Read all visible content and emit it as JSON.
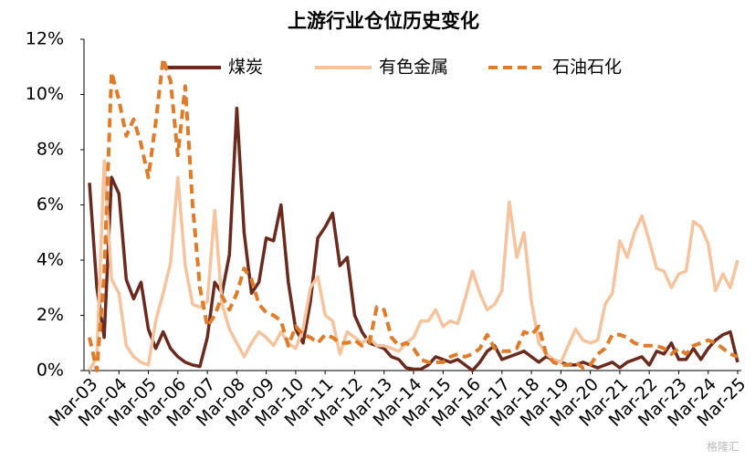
{
  "chart_data": {
    "type": "line",
    "title": "上游行业仓位历史变化",
    "watermark": "格隆汇",
    "categories": [
      "Mar-03",
      null,
      null,
      null,
      "Mar-04",
      null,
      null,
      null,
      "Mar-05",
      null,
      null,
      null,
      "Mar-06",
      null,
      null,
      null,
      "Mar-07",
      null,
      null,
      null,
      "Mar-08",
      null,
      null,
      null,
      "Mar-09",
      null,
      null,
      null,
      "Mar-10",
      null,
      null,
      null,
      "Mar-11",
      null,
      null,
      null,
      "Mar-12",
      null,
      null,
      null,
      "Mar-13",
      null,
      null,
      null,
      "Mar-14",
      null,
      null,
      null,
      "Mar-15",
      null,
      null,
      null,
      "Mar-16",
      null,
      null,
      null,
      "Mar-17",
      null,
      null,
      null,
      "Mar-18",
      null,
      null,
      null,
      "Mar-19",
      null,
      null,
      null,
      "Mar-20",
      null,
      null,
      null,
      "Mar-21",
      null,
      null,
      null,
      "Mar-22",
      null,
      null,
      null,
      "Mar-23",
      null,
      null,
      null,
      "Mar-24",
      null,
      null,
      null,
      "Mar-25"
    ],
    "series": [
      {
        "name": "煤炭",
        "color": "#6b2a1e",
        "dash": false,
        "values": [
          6.8,
          3.0,
          1.2,
          7.0,
          6.4,
          3.3,
          2.6,
          3.2,
          1.5,
          0.8,
          1.4,
          0.8,
          0.5,
          0.3,
          0.2,
          0.15,
          1.2,
          3.2,
          2.8,
          4.2,
          9.5,
          5.0,
          2.8,
          3.2,
          4.8,
          4.7,
          6.0,
          3.2,
          1.5,
          1.0,
          2.5,
          4.8,
          5.2,
          5.7,
          3.8,
          4.1,
          2.0,
          1.4,
          1.0,
          0.9,
          0.8,
          0.5,
          0.4,
          0.1,
          0.05,
          0.05,
          0.2,
          0.5,
          0.4,
          0.3,
          0.4,
          0.2,
          0.0,
          0.3,
          0.7,
          0.9,
          0.4,
          0.5,
          0.6,
          0.7,
          0.5,
          0.3,
          0.5,
          0.4,
          0.3,
          0.2,
          0.2,
          0.3,
          0.2,
          0.1,
          0.2,
          0.3,
          0.1,
          0.3,
          0.4,
          0.5,
          0.2,
          0.7,
          0.6,
          1.0,
          0.4,
          0.4,
          0.8,
          0.4,
          0.8,
          1.1,
          1.3,
          1.4,
          0.3
        ]
      },
      {
        "name": "有色金属",
        "color": "#f6c39c",
        "dash": false,
        "values": [
          0.0,
          0.5,
          7.6,
          3.3,
          2.8,
          0.9,
          0.5,
          0.3,
          0.2,
          1.8,
          2.8,
          3.9,
          7.0,
          3.8,
          2.4,
          2.3,
          2.5,
          5.8,
          2.4,
          1.5,
          1.0,
          0.5,
          1.0,
          1.4,
          1.2,
          0.9,
          1.4,
          1.0,
          0.8,
          1.5,
          3.0,
          3.4,
          2.0,
          1.8,
          0.6,
          1.4,
          1.2,
          1.0,
          1.2,
          0.9,
          0.9,
          0.8,
          0.7,
          1.0,
          1.2,
          1.8,
          1.8,
          2.2,
          1.6,
          1.8,
          1.7,
          2.6,
          3.6,
          2.8,
          2.2,
          2.4,
          2.9,
          6.1,
          4.1,
          5.0,
          2.5,
          1.0,
          0.6,
          0.4,
          0.3,
          0.9,
          1.5,
          1.1,
          1.0,
          1.1,
          2.4,
          2.8,
          4.7,
          4.1,
          5.0,
          5.6,
          4.7,
          3.7,
          3.6,
          3.0,
          3.5,
          3.6,
          5.4,
          5.2,
          4.6,
          2.9,
          3.5,
          3.0,
          4.0
        ]
      },
      {
        "name": "石油石化",
        "color": "#e07b2a",
        "dash": true,
        "values": [
          1.2,
          0.0,
          3.5,
          10.8,
          9.8,
          8.5,
          9.1,
          8.2,
          7.0,
          9.0,
          11.3,
          10.5,
          7.8,
          10.3,
          6.0,
          3.0,
          1.6,
          2.0,
          2.7,
          2.2,
          2.8,
          3.7,
          3.3,
          2.4,
          2.1,
          2.0,
          1.8,
          0.9,
          1.6,
          1.3,
          1.2,
          1.0,
          1.3,
          1.2,
          1.0,
          1.0,
          1.1,
          0.9,
          1.0,
          2.3,
          2.2,
          1.2,
          0.9,
          1.0,
          0.8,
          0.4,
          0.3,
          0.3,
          0.3,
          0.5,
          0.6,
          0.5,
          0.6,
          0.8,
          1.3,
          0.8,
          0.7,
          0.7,
          0.8,
          1.4,
          1.3,
          1.6,
          0.6,
          0.3,
          0.2,
          0.2,
          0.3,
          0.1,
          0.2,
          0.6,
          0.8,
          1.3,
          1.3,
          1.2,
          1.0,
          0.9,
          0.9,
          0.9,
          0.8,
          0.6,
          0.8,
          0.6,
          0.9,
          1.0,
          1.1,
          1.0,
          0.8,
          0.6,
          0.5
        ]
      }
    ],
    "ylim": [
      0,
      12
    ],
    "yticks": [
      {
        "value": 0,
        "label": "0%"
      },
      {
        "value": 2,
        "label": "2%"
      },
      {
        "value": 4,
        "label": "4%"
      },
      {
        "value": 6,
        "label": "6%"
      },
      {
        "value": 8,
        "label": "8%"
      },
      {
        "value": 10,
        "label": "10%"
      },
      {
        "value": 12,
        "label": "12%"
      }
    ],
    "grid": false
  }
}
